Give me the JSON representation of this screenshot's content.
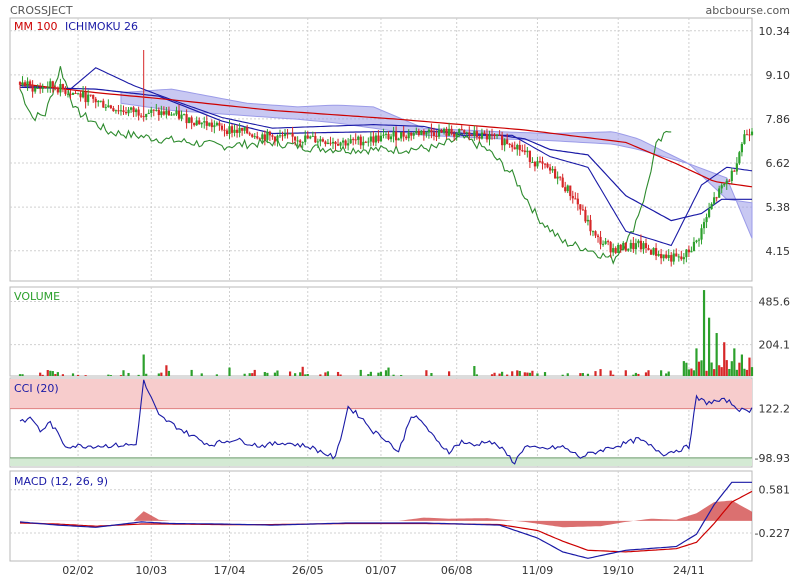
{
  "header": {
    "ticker": "CROSSJECT",
    "source": "abcbourse.com"
  },
  "colors": {
    "up": "#2ca02c",
    "down": "#d62728",
    "ma": "#cc0000",
    "ichimoku": "#1a1aa6",
    "chikou": "#2e8b2e",
    "cloud": "#9b9be8",
    "volume_label": "#2ca02c",
    "cci_band_high": "#f7cccc",
    "cci_band_low": "#d4ead4",
    "grid": "#d0d0d0",
    "macd_line": "#1a1aa6",
    "signal_line": "#cc0000",
    "histogram": "#cc3333"
  },
  "chart_data": [
    {
      "type": "candlestick",
      "panel": "price",
      "legend": [
        "MM 100",
        "ICHIMOKU 26"
      ],
      "y_ticks": [
        4.15,
        5.38,
        6.62,
        7.86,
        9.1,
        10.34
      ],
      "ylim": [
        3.3,
        10.7
      ],
      "x_ticks": [
        "02/02",
        "10/03",
        "17/04",
        "26/05",
        "01/07",
        "06/08",
        "11/09",
        "19/10",
        "24/11"
      ],
      "price_keys": [
        [
          0,
          8.9
        ],
        [
          6,
          8.7
        ],
        [
          12,
          8.8
        ],
        [
          25,
          8.5
        ],
        [
          40,
          8.1
        ],
        [
          60,
          8.0
        ],
        [
          80,
          7.6
        ],
        [
          100,
          7.35
        ],
        [
          115,
          7.3
        ],
        [
          130,
          7.2
        ],
        [
          145,
          7.35
        ],
        [
          160,
          7.5
        ],
        [
          175,
          7.45
        ],
        [
          185,
          7.35
        ],
        [
          195,
          7.2
        ],
        [
          205,
          6.6
        ],
        [
          212,
          6.3
        ],
        [
          220,
          5.6
        ],
        [
          228,
          4.5
        ],
        [
          235,
          4.2
        ],
        [
          245,
          4.3
        ],
        [
          255,
          4.0
        ],
        [
          262,
          3.9
        ],
        [
          268,
          4.4
        ],
        [
          275,
          5.6
        ],
        [
          282,
          6.3
        ],
        [
          287,
          7.4
        ],
        [
          290,
          7.6
        ]
      ],
      "spikes": [
        [
          49,
          9.8
        ],
        [
          43,
          8.0
        ],
        [
          80,
          7.1
        ]
      ],
      "ma100_keys": [
        [
          0,
          8.85
        ],
        [
          30,
          8.6
        ],
        [
          60,
          8.4
        ],
        [
          100,
          8.1
        ],
        [
          150,
          7.85
        ],
        [
          200,
          7.55
        ],
        [
          240,
          7.2
        ],
        [
          260,
          6.6
        ],
        [
          275,
          6.1
        ],
        [
          290,
          5.95
        ]
      ],
      "tenkan_keys": [
        [
          0,
          8.8
        ],
        [
          20,
          8.7
        ],
        [
          30,
          9.3
        ],
        [
          45,
          8.8
        ],
        [
          60,
          8.4
        ],
        [
          80,
          7.9
        ],
        [
          100,
          7.6
        ],
        [
          140,
          7.7
        ],
        [
          160,
          7.65
        ],
        [
          175,
          7.4
        ],
        [
          195,
          7.4
        ],
        [
          210,
          6.8
        ],
        [
          225,
          6.5
        ],
        [
          240,
          4.7
        ],
        [
          258,
          4.3
        ],
        [
          270,
          6.0
        ],
        [
          280,
          6.5
        ],
        [
          290,
          6.4
        ]
      ],
      "kijun_keys": [
        [
          0,
          8.75
        ],
        [
          30,
          8.7
        ],
        [
          55,
          8.5
        ],
        [
          80,
          7.8
        ],
        [
          100,
          7.45
        ],
        [
          140,
          7.5
        ],
        [
          165,
          7.5
        ],
        [
          190,
          7.4
        ],
        [
          200,
          7.3
        ],
        [
          210,
          7.0
        ],
        [
          225,
          6.85
        ],
        [
          240,
          5.7
        ],
        [
          258,
          5.0
        ],
        [
          270,
          5.2
        ],
        [
          278,
          5.6
        ],
        [
          290,
          5.6
        ]
      ],
      "cloud_a_keys": [
        [
          40,
          8.6
        ],
        [
          60,
          8.7
        ],
        [
          90,
          8.3
        ],
        [
          110,
          8.2
        ],
        [
          125,
          8.25
        ],
        [
          140,
          8.2
        ],
        [
          160,
          7.6
        ],
        [
          190,
          7.5
        ],
        [
          210,
          7.45
        ],
        [
          235,
          7.5
        ],
        [
          245,
          7.3
        ],
        [
          265,
          6.6
        ],
        [
          280,
          5.6
        ],
        [
          290,
          5.5
        ]
      ],
      "cloud_b_keys": [
        [
          40,
          8.3
        ],
        [
          60,
          8.1
        ],
        [
          90,
          7.95
        ],
        [
          110,
          7.85
        ],
        [
          125,
          7.75
        ],
        [
          140,
          7.6
        ],
        [
          160,
          7.4
        ],
        [
          190,
          7.3
        ],
        [
          210,
          7.25
        ],
        [
          235,
          7.15
        ],
        [
          245,
          7.0
        ],
        [
          265,
          6.6
        ],
        [
          280,
          6.2
        ],
        [
          290,
          4.5
        ]
      ],
      "chikou_keys": [
        [
          0,
          8.7
        ],
        [
          5,
          7.9
        ],
        [
          10,
          8.0
        ],
        [
          16,
          9.3
        ],
        [
          22,
          8.1
        ],
        [
          35,
          7.5
        ],
        [
          55,
          7.3
        ],
        [
          80,
          7.1
        ],
        [
          100,
          7.2
        ],
        [
          115,
          7.05
        ],
        [
          130,
          7.0
        ],
        [
          150,
          7.0
        ],
        [
          165,
          7.05
        ],
        [
          175,
          7.35
        ],
        [
          185,
          7.0
        ],
        [
          195,
          6.3
        ],
        [
          205,
          5.1
        ],
        [
          215,
          4.4
        ],
        [
          225,
          4.2
        ],
        [
          235,
          3.9
        ],
        [
          242,
          4.6
        ],
        [
          248,
          5.8
        ],
        [
          252,
          7.1
        ],
        [
          258,
          7.6
        ]
      ]
    },
    {
      "type": "bar",
      "panel": "volume",
      "label": "VOLUME",
      "y_ticks": [
        204.1,
        485.6
      ],
      "ylim": [
        0,
        580
      ],
      "spikes": [
        [
          49,
          140
        ],
        [
          58,
          70
        ],
        [
          83,
          55
        ],
        [
          112,
          60
        ],
        [
          146,
          55
        ],
        [
          180,
          65
        ],
        [
          230,
          45
        ],
        [
          268,
          180
        ],
        [
          271,
          560
        ],
        [
          273,
          380
        ],
        [
          276,
          280
        ],
        [
          279,
          220
        ],
        [
          283,
          180
        ],
        [
          286,
          140
        ],
        [
          289,
          120
        ]
      ]
    },
    {
      "type": "line",
      "panel": "cci",
      "label": "CCI (20)",
      "y_ticks": [
        122.2,
        -98.93
      ],
      "ylim": [
        -140,
        260
      ],
      "keys": [
        [
          0,
          68
        ],
        [
          5,
          75
        ],
        [
          8,
          20
        ],
        [
          12,
          60
        ],
        [
          18,
          -45
        ],
        [
          30,
          -45
        ],
        [
          46,
          -40
        ],
        [
          49,
          245
        ],
        [
          55,
          90
        ],
        [
          65,
          20
        ],
        [
          75,
          -40
        ],
        [
          85,
          -15
        ],
        [
          95,
          -45
        ],
        [
          105,
          -30
        ],
        [
          115,
          -50
        ],
        [
          125,
          -100
        ],
        [
          130,
          130
        ],
        [
          135,
          85
        ],
        [
          140,
          20
        ],
        [
          145,
          -15
        ],
        [
          150,
          -75
        ],
        [
          155,
          95
        ],
        [
          160,
          55
        ],
        [
          165,
          -25
        ],
        [
          170,
          -70
        ],
        [
          175,
          -25
        ],
        [
          180,
          -45
        ],
        [
          185,
          -20
        ],
        [
          190,
          -50
        ],
        [
          196,
          -120
        ],
        [
          200,
          -45
        ],
        [
          205,
          -60
        ],
        [
          215,
          -50
        ],
        [
          222,
          -95
        ],
        [
          230,
          -65
        ],
        [
          238,
          -40
        ],
        [
          245,
          -15
        ],
        [
          255,
          -80
        ],
        [
          265,
          -50
        ],
        [
          268,
          170
        ],
        [
          272,
          150
        ],
        [
          280,
          160
        ],
        [
          285,
          120
        ],
        [
          287,
          110
        ],
        [
          290,
          120
        ]
      ]
    },
    {
      "type": "line",
      "panel": "macd",
      "label": "MACD (12, 26, 9)",
      "y_ticks": [
        0.581,
        -0.227
      ],
      "ylim": [
        -0.75,
        0.93
      ],
      "macd_keys": [
        [
          0,
          -0.02
        ],
        [
          15,
          -0.08
        ],
        [
          30,
          -0.12
        ],
        [
          48,
          -0.02
        ],
        [
          60,
          -0.05
        ],
        [
          80,
          -0.06
        ],
        [
          100,
          -0.08
        ],
        [
          130,
          -0.04
        ],
        [
          160,
          -0.04
        ],
        [
          190,
          -0.08
        ],
        [
          205,
          -0.32
        ],
        [
          215,
          -0.58
        ],
        [
          225,
          -0.7
        ],
        [
          240,
          -0.55
        ],
        [
          260,
          -0.48
        ],
        [
          268,
          -0.25
        ],
        [
          275,
          0.3
        ],
        [
          282,
          0.72
        ],
        [
          290,
          0.72
        ]
      ],
      "signal_keys": [
        [
          0,
          -0.04
        ],
        [
          15,
          -0.06
        ],
        [
          30,
          -0.1
        ],
        [
          48,
          -0.06
        ],
        [
          60,
          -0.06
        ],
        [
          80,
          -0.07
        ],
        [
          100,
          -0.07
        ],
        [
          130,
          -0.05
        ],
        [
          160,
          -0.05
        ],
        [
          190,
          -0.07
        ],
        [
          205,
          -0.18
        ],
        [
          215,
          -0.38
        ],
        [
          225,
          -0.55
        ],
        [
          240,
          -0.58
        ],
        [
          260,
          -0.52
        ],
        [
          268,
          -0.4
        ],
        [
          275,
          -0.05
        ],
        [
          282,
          0.35
        ],
        [
          290,
          0.55
        ]
      ],
      "histogram_keys": [
        [
          0,
          0
        ],
        [
          45,
          0
        ],
        [
          49,
          0.18
        ],
        [
          55,
          0.02
        ],
        [
          60,
          0
        ],
        [
          150,
          0
        ],
        [
          160,
          0.06
        ],
        [
          170,
          0.04
        ],
        [
          185,
          0.05
        ],
        [
          200,
          -0.02
        ],
        [
          215,
          -0.12
        ],
        [
          230,
          -0.1
        ],
        [
          240,
          -0.02
        ],
        [
          250,
          0.04
        ],
        [
          260,
          0.02
        ],
        [
          268,
          0.14
        ],
        [
          275,
          0.35
        ],
        [
          282,
          0.38
        ],
        [
          290,
          0.17
        ]
      ]
    }
  ]
}
